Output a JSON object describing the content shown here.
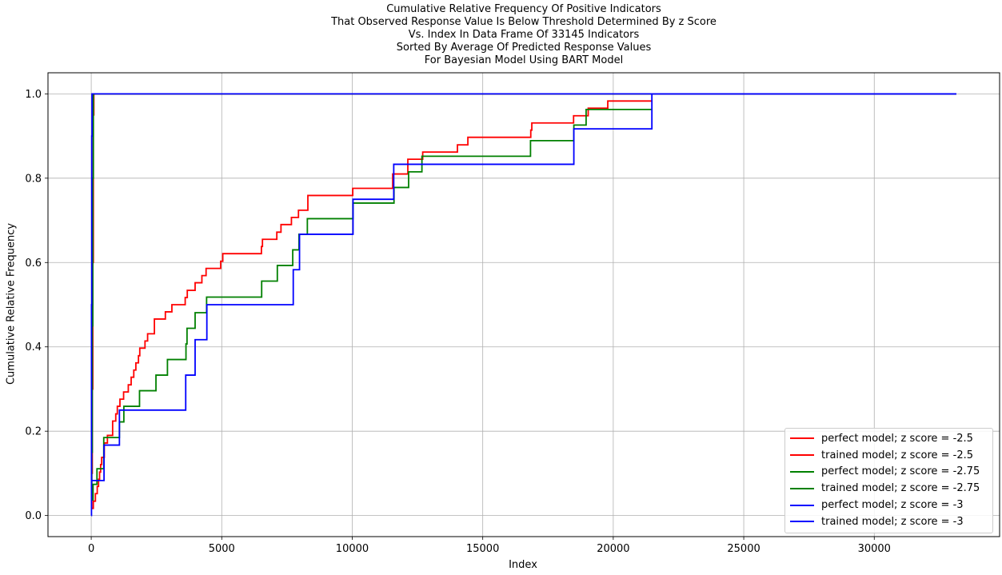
{
  "chart_data": {
    "type": "line",
    "title_lines": [
      "Cumulative Relative Frequency Of Positive Indicators",
      "That Observed Response Value Is Below Threshold Determined By z Score",
      "Vs. Index In Data Frame Of 33145 Indicators",
      "Sorted By Average Of Predicted Response Values",
      "For Bayesian Model Using BART Model"
    ],
    "xlabel": "Index",
    "ylabel": "Cumulative Relative Frequency",
    "xlim": [
      -1657,
      34802
    ],
    "ylim": [
      -0.05,
      1.05
    ],
    "xticks": [
      0,
      5000,
      10000,
      15000,
      20000,
      25000,
      30000
    ],
    "xtick_labels": [
      "0",
      "5000",
      "10000",
      "15000",
      "20000",
      "25000",
      "30000"
    ],
    "yticks": [
      0.0,
      0.2,
      0.4,
      0.6,
      0.8,
      1.0
    ],
    "ytick_labels": [
      "0.0",
      "0.2",
      "0.4",
      "0.6",
      "0.8",
      "1.0"
    ],
    "grid": true,
    "legend_position": "lower-right",
    "series": [
      {
        "name": "perfect model; z score = -2.5",
        "color": "#ff0000",
        "step": true,
        "points": [
          [
            0,
            0.017
          ],
          [
            20,
            0.1
          ],
          [
            40,
            0.3
          ],
          [
            60,
            0.6
          ],
          [
            80,
            0.95
          ],
          [
            100,
            1.0
          ],
          [
            33145,
            1.0
          ]
        ]
      },
      {
        "name": "trained model; z score = -2.5",
        "color": "#ff0000",
        "step": true,
        "points": [
          [
            0,
            0.017
          ],
          [
            80,
            0.034
          ],
          [
            160,
            0.052
          ],
          [
            230,
            0.069
          ],
          [
            280,
            0.086
          ],
          [
            320,
            0.103
          ],
          [
            360,
            0.121
          ],
          [
            400,
            0.138
          ],
          [
            500,
            0.172
          ],
          [
            620,
            0.19
          ],
          [
            820,
            0.224
          ],
          [
            940,
            0.241
          ],
          [
            1000,
            0.259
          ],
          [
            1100,
            0.276
          ],
          [
            1240,
            0.293
          ],
          [
            1420,
            0.31
          ],
          [
            1530,
            0.328
          ],
          [
            1630,
            0.345
          ],
          [
            1710,
            0.362
          ],
          [
            1810,
            0.379
          ],
          [
            1860,
            0.397
          ],
          [
            2060,
            0.414
          ],
          [
            2160,
            0.431
          ],
          [
            2420,
            0.466
          ],
          [
            2840,
            0.483
          ],
          [
            3090,
            0.5
          ],
          [
            3600,
            0.517
          ],
          [
            3680,
            0.534
          ],
          [
            3980,
            0.552
          ],
          [
            4240,
            0.569
          ],
          [
            4400,
            0.586
          ],
          [
            4960,
            0.603
          ],
          [
            5040,
            0.621
          ],
          [
            6520,
            0.638
          ],
          [
            6560,
            0.655
          ],
          [
            7110,
            0.672
          ],
          [
            7270,
            0.69
          ],
          [
            7670,
            0.707
          ],
          [
            7940,
            0.724
          ],
          [
            8300,
            0.759
          ],
          [
            10020,
            0.776
          ],
          [
            11550,
            0.81
          ],
          [
            12130,
            0.845
          ],
          [
            12700,
            0.862
          ],
          [
            14030,
            0.879
          ],
          [
            14430,
            0.897
          ],
          [
            16840,
            0.914
          ],
          [
            16880,
            0.931
          ],
          [
            18480,
            0.948
          ],
          [
            19040,
            0.966
          ],
          [
            19790,
            0.983
          ],
          [
            21470,
            0.983
          ]
        ]
      },
      {
        "name": "perfect model; z score = -2.75",
        "color": "#008000",
        "step": true,
        "points": [
          [
            0,
            0.037
          ],
          [
            20,
            0.15
          ],
          [
            40,
            0.45
          ],
          [
            60,
            0.8
          ],
          [
            80,
            1.0
          ],
          [
            33145,
            1.0
          ]
        ]
      },
      {
        "name": "trained model; z score = -2.75",
        "color": "#008000",
        "step": true,
        "points": [
          [
            0,
            0.037
          ],
          [
            70,
            0.074
          ],
          [
            220,
            0.111
          ],
          [
            480,
            0.185
          ],
          [
            1080,
            0.222
          ],
          [
            1250,
            0.259
          ],
          [
            1850,
            0.296
          ],
          [
            2480,
            0.333
          ],
          [
            2920,
            0.37
          ],
          [
            3630,
            0.407
          ],
          [
            3670,
            0.444
          ],
          [
            3980,
            0.481
          ],
          [
            4420,
            0.518
          ],
          [
            6530,
            0.556
          ],
          [
            7130,
            0.593
          ],
          [
            7720,
            0.63
          ],
          [
            7960,
            0.667
          ],
          [
            8280,
            0.704
          ],
          [
            10030,
            0.741
          ],
          [
            11600,
            0.778
          ],
          [
            12160,
            0.815
          ],
          [
            12670,
            0.852
          ],
          [
            16830,
            0.889
          ],
          [
            18490,
            0.926
          ],
          [
            18960,
            0.963
          ],
          [
            21470,
            0.963
          ]
        ]
      },
      {
        "name": "perfect model; z score = -3",
        "color": "#0000ff",
        "step": true,
        "points": [
          [
            0,
            0.0
          ],
          [
            10,
            0.5
          ],
          [
            20,
            0.9
          ],
          [
            30,
            1.0
          ],
          [
            33145,
            1.0
          ]
        ]
      },
      {
        "name": "trained model; z score = -3",
        "color": "#0000ff",
        "step": true,
        "points": [
          [
            0,
            0.083
          ],
          [
            490,
            0.167
          ],
          [
            1080,
            0.25
          ],
          [
            3620,
            0.333
          ],
          [
            3980,
            0.417
          ],
          [
            4430,
            0.5
          ],
          [
            7740,
            0.583
          ],
          [
            7980,
            0.667
          ],
          [
            10030,
            0.75
          ],
          [
            11590,
            0.833
          ],
          [
            18490,
            0.917
          ],
          [
            21480,
            1.0
          ],
          [
            33145,
            1.0
          ]
        ]
      }
    ]
  }
}
